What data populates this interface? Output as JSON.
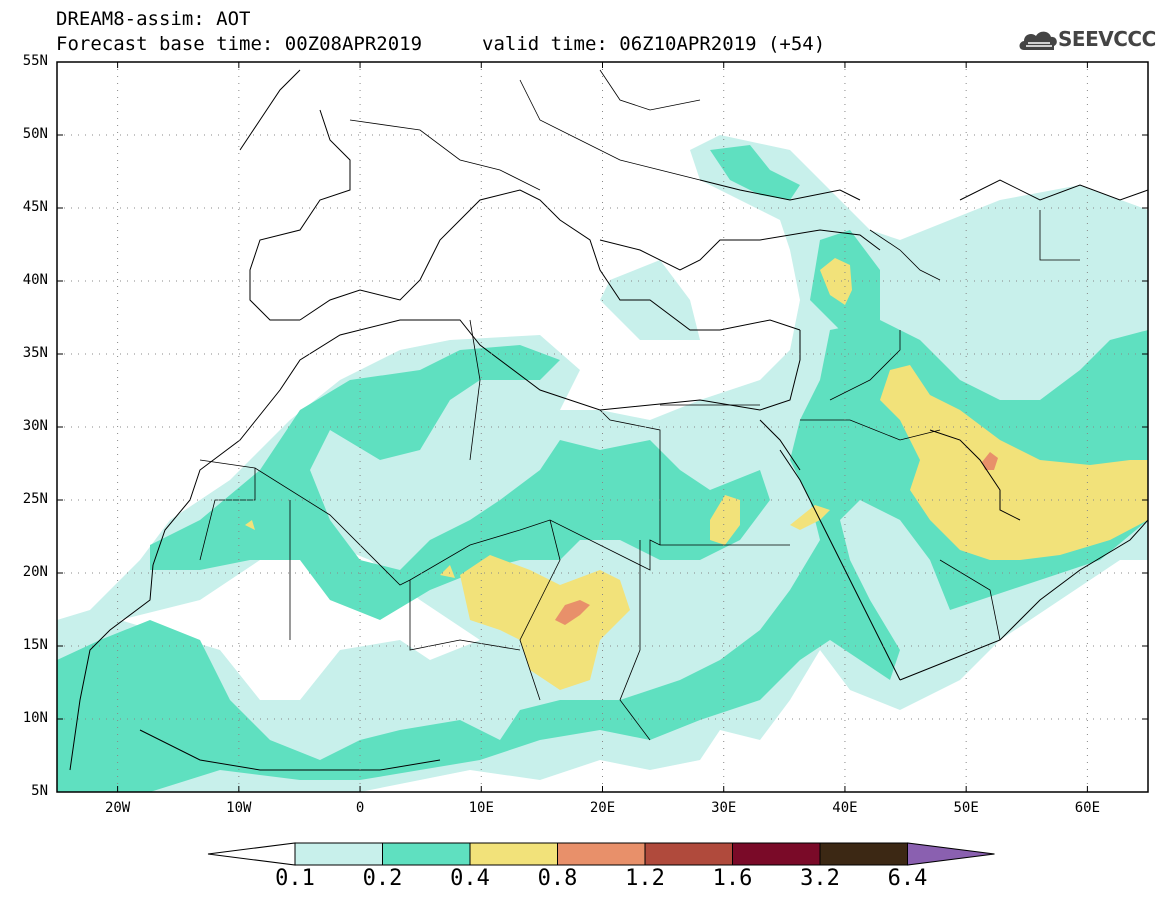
{
  "header": {
    "title_line1": "DREAM8-assim: AOT",
    "title_line2": "Forecast base time: 00Z08APR2019",
    "valid_time": "valid time: 06Z10APR2019 (+54)",
    "logo_text": "SEEVCCC",
    "logo_icon": "cloud-icon"
  },
  "map": {
    "lat_labels": [
      "55N",
      "50N",
      "45N",
      "40N",
      "35N",
      "30N",
      "25N",
      "20N",
      "15N",
      "10N",
      "5N"
    ],
    "lon_labels": [
      "20W",
      "10W",
      "0",
      "10E",
      "20E",
      "30E",
      "40E",
      "50E",
      "60E"
    ],
    "lat_range": [
      5,
      55
    ],
    "lon_range": [
      -25,
      65
    ],
    "grid": "dotted"
  },
  "colorbar": {
    "levels": [
      "0.1",
      "0.2",
      "0.4",
      "0.8",
      "1.2",
      "1.6",
      "3.2",
      "6.4"
    ],
    "colors": [
      "#ffffff",
      "#c8f0eb",
      "#5fe0c0",
      "#f2e27a",
      "#e8906a",
      "#b04a3c",
      "#7a0a28",
      "#3c2814",
      "#8a60b0"
    ]
  },
  "colors": {
    "aot_0_1": "#c8f0eb",
    "aot_0_2": "#5fe0c0",
    "aot_0_4": "#f2e27a",
    "aot_0_8": "#e8906a"
  }
}
